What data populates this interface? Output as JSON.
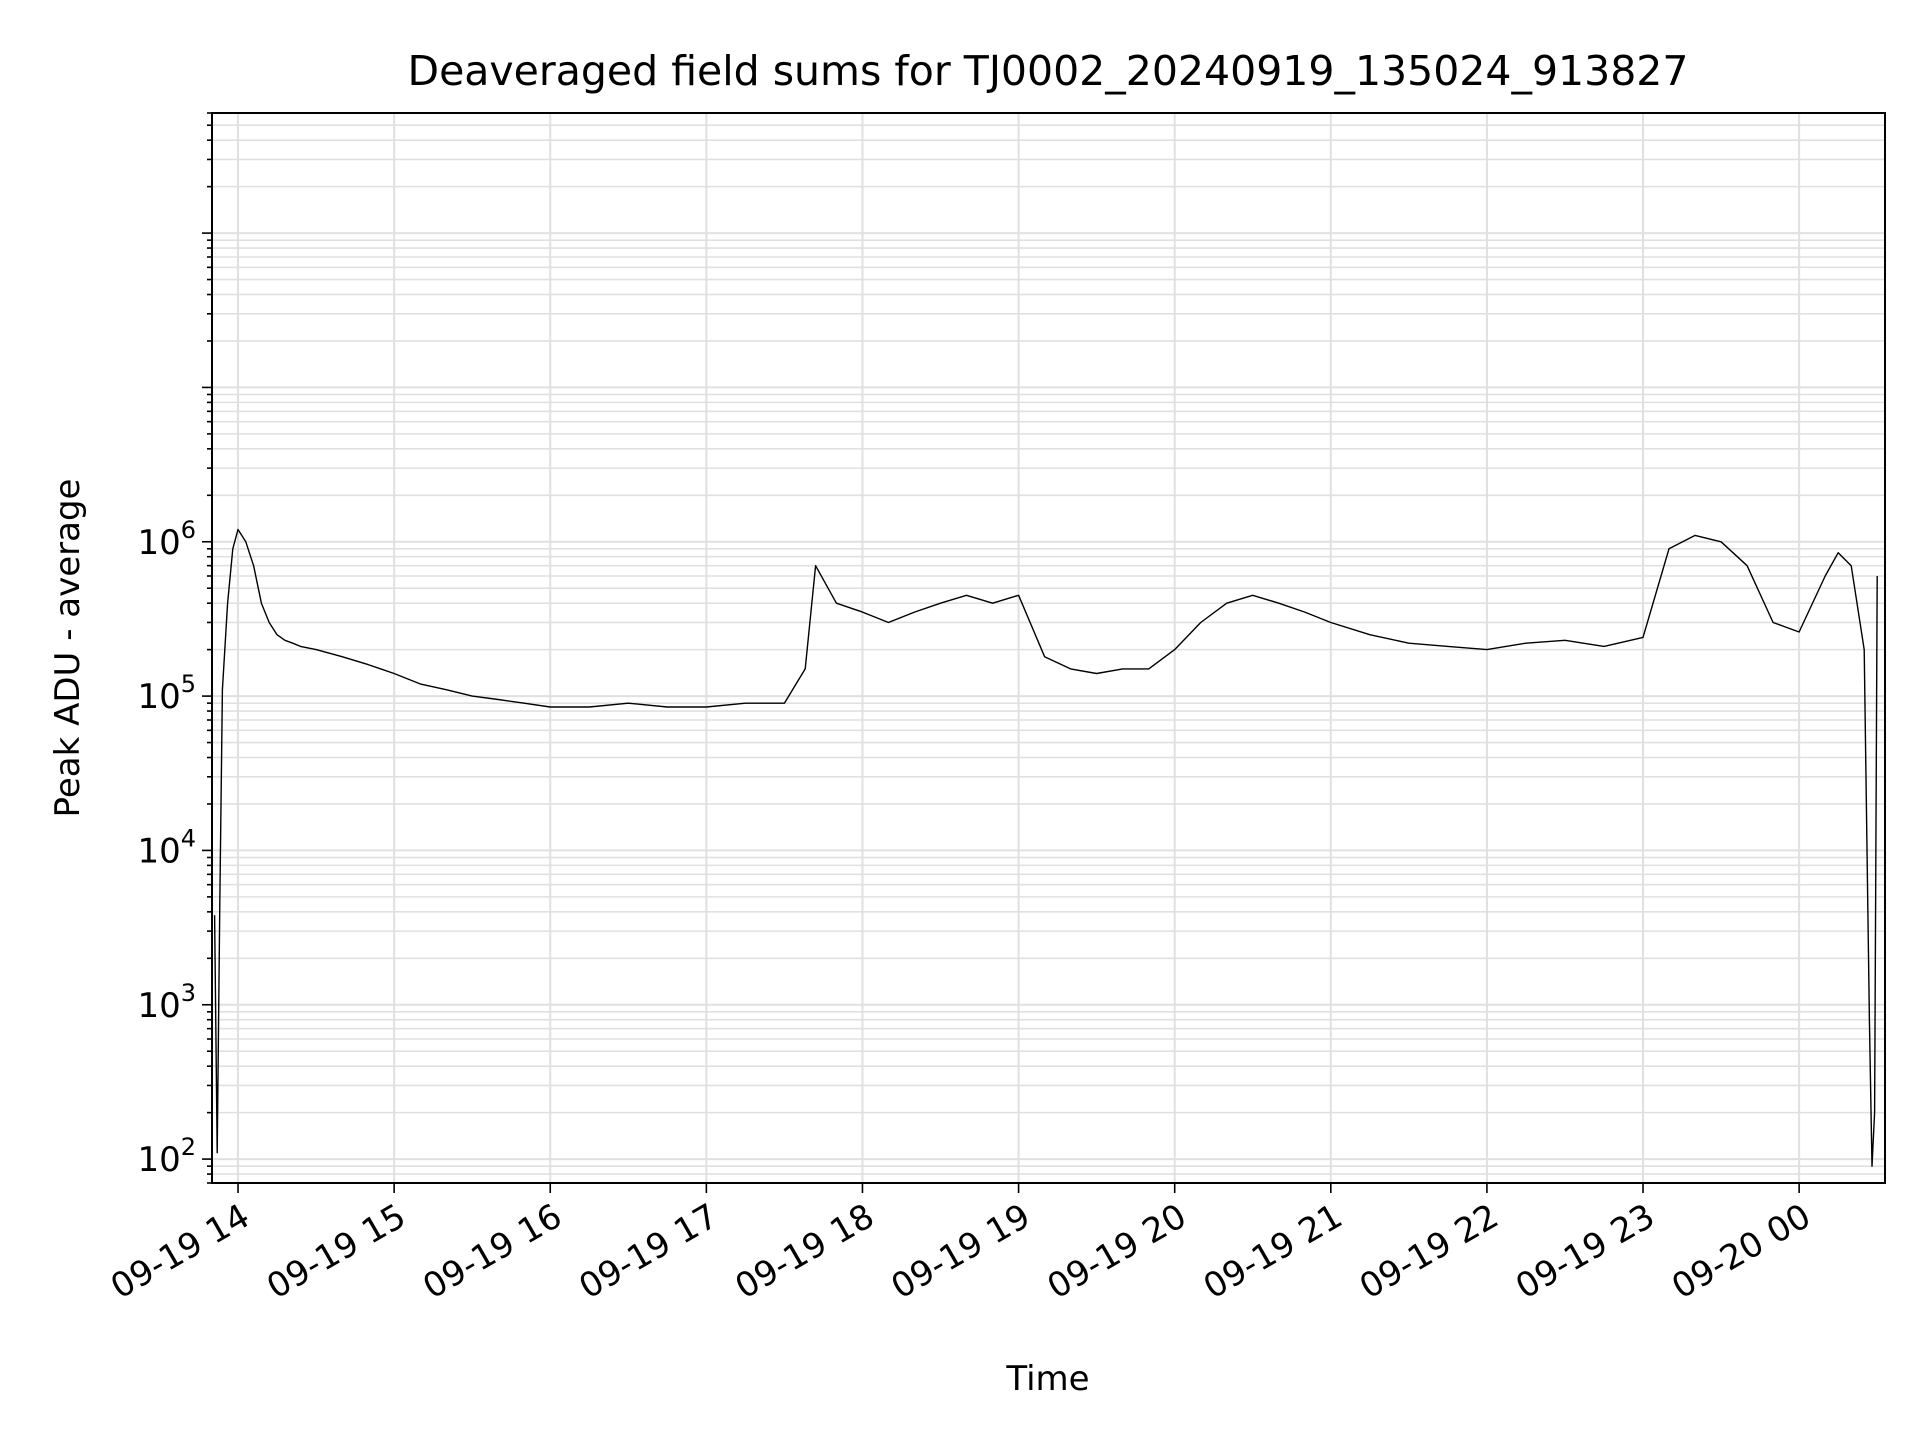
{
  "chart_data": {
    "type": "line",
    "title": "Deaveraged field sums for TJ0002_20240919_135024_913827",
    "xlabel": "Time",
    "ylabel": "Peak ADU - average",
    "y_scale": "log",
    "ylim": [
      70,
      600000000
    ],
    "xlim": [
      "2024-09-19 13:50",
      "2024-09-20 00:33"
    ],
    "grid": true,
    "line_color": "#000000",
    "grid_color": "#e0e0e0",
    "x_ticks": [
      "09-19 14",
      "09-19 15",
      "09-19 16",
      "09-19 17",
      "09-19 18",
      "09-19 19",
      "09-19 20",
      "09-19 21",
      "09-19 22",
      "09-19 23",
      "09-20 00"
    ],
    "y_ticks": [
      {
        "value": 100,
        "base": "10",
        "exp": "2"
      },
      {
        "value": 1000,
        "base": "10",
        "exp": "3"
      },
      {
        "value": 10000,
        "base": "10",
        "exp": "4"
      },
      {
        "value": 100000,
        "base": "10",
        "exp": "5"
      },
      {
        "value": 1000000,
        "base": "10",
        "exp": "6"
      }
    ],
    "series": [
      {
        "x": [
          "2024-09-19 13:51",
          "2024-09-19 13:52",
          "2024-09-19 13:53",
          "2024-09-19 13:54",
          "2024-09-19 13:56",
          "2024-09-19 13:58",
          "2024-09-19 14:00",
          "2024-09-19 14:03",
          "2024-09-19 14:06",
          "2024-09-19 14:09",
          "2024-09-19 14:12",
          "2024-09-19 14:15",
          "2024-09-19 14:18",
          "2024-09-19 14:21",
          "2024-09-19 14:24",
          "2024-09-19 14:30",
          "2024-09-19 14:40",
          "2024-09-19 14:50",
          "2024-09-19 15:00",
          "2024-09-19 15:10",
          "2024-09-19 15:20",
          "2024-09-19 15:30",
          "2024-09-19 15:40",
          "2024-09-19 15:50",
          "2024-09-19 16:00",
          "2024-09-19 16:15",
          "2024-09-19 16:30",
          "2024-09-19 16:45",
          "2024-09-19 17:00",
          "2024-09-19 17:15",
          "2024-09-19 17:30",
          "2024-09-19 17:38",
          "2024-09-19 17:42",
          "2024-09-19 17:50",
          "2024-09-19 18:00",
          "2024-09-19 18:10",
          "2024-09-19 18:20",
          "2024-09-19 18:30",
          "2024-09-19 18:40",
          "2024-09-19 18:50",
          "2024-09-19 19:00",
          "2024-09-19 19:10",
          "2024-09-19 19:20",
          "2024-09-19 19:30",
          "2024-09-19 19:40",
          "2024-09-19 19:50",
          "2024-09-19 20:00",
          "2024-09-19 20:10",
          "2024-09-19 20:20",
          "2024-09-19 20:30",
          "2024-09-19 20:40",
          "2024-09-19 20:50",
          "2024-09-19 21:00",
          "2024-09-19 21:15",
          "2024-09-19 21:30",
          "2024-09-19 21:45",
          "2024-09-19 22:00",
          "2024-09-19 22:15",
          "2024-09-19 22:30",
          "2024-09-19 22:45",
          "2024-09-19 23:00",
          "2024-09-19 23:10",
          "2024-09-19 23:20",
          "2024-09-19 23:30",
          "2024-09-19 23:40",
          "2024-09-19 23:50",
          "2024-09-20 00:00",
          "2024-09-20 00:10",
          "2024-09-20 00:15",
          "2024-09-20 00:20",
          "2024-09-20 00:25",
          "2024-09-20 00:27",
          "2024-09-20 00:28",
          "2024-09-20 00:29",
          "2024-09-20 00:30"
        ],
        "y": [
          3800,
          110,
          4500,
          110000,
          400000,
          900000,
          1200000,
          1000000,
          700000,
          400000,
          300000,
          250000,
          230000,
          220000,
          210000,
          200000,
          180000,
          160000,
          140000,
          120000,
          110000,
          100000,
          95000,
          90000,
          85000,
          85000,
          90000,
          85000,
          85000,
          90000,
          90000,
          150000,
          700000,
          400000,
          350000,
          300000,
          350000,
          400000,
          450000,
          400000,
          450000,
          180000,
          150000,
          140000,
          150000,
          150000,
          200000,
          300000,
          400000,
          450000,
          400000,
          350000,
          300000,
          250000,
          220000,
          210000,
          200000,
          220000,
          230000,
          210000,
          240000,
          900000,
          1100000,
          1000000,
          700000,
          300000,
          260000,
          600000,
          850000,
          700000,
          200000,
          800,
          90,
          200,
          600000
        ]
      }
    ]
  }
}
